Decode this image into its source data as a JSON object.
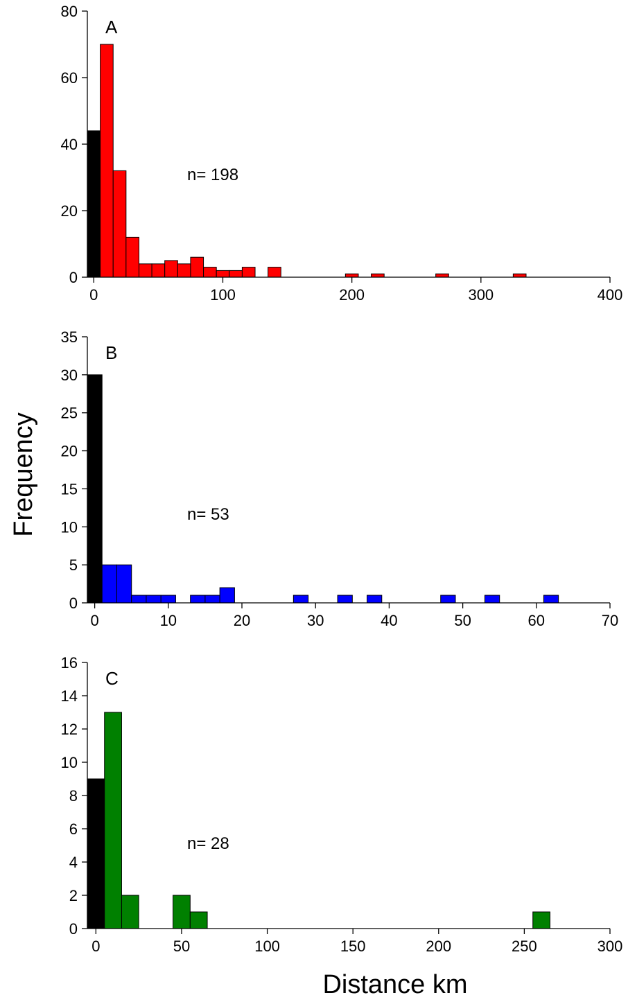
{
  "figure": {
    "ylabel": "Frequency",
    "xlabel": "Distance km"
  },
  "chart_data": [
    {
      "type": "bar",
      "panel_label": "A",
      "annotation": "n= 198",
      "xlim": [
        -5,
        400
      ],
      "ylim": [
        0,
        80
      ],
      "xticks": [
        0,
        100,
        200,
        300,
        400
      ],
      "yticks": [
        0,
        20,
        40,
        60,
        80
      ],
      "grid": false,
      "bins": [
        {
          "x0": -5,
          "x1": 5,
          "value": 44,
          "color": "#000000"
        },
        {
          "x0": 5,
          "x1": 15,
          "value": 70,
          "color": "#ff0000"
        },
        {
          "x0": 15,
          "x1": 25,
          "value": 32,
          "color": "#ff0000"
        },
        {
          "x0": 25,
          "x1": 35,
          "value": 12,
          "color": "#ff0000"
        },
        {
          "x0": 35,
          "x1": 45,
          "value": 4,
          "color": "#ff0000"
        },
        {
          "x0": 45,
          "x1": 55,
          "value": 4,
          "color": "#ff0000"
        },
        {
          "x0": 55,
          "x1": 65,
          "value": 5,
          "color": "#ff0000"
        },
        {
          "x0": 65,
          "x1": 75,
          "value": 4,
          "color": "#ff0000"
        },
        {
          "x0": 75,
          "x1": 85,
          "value": 6,
          "color": "#ff0000"
        },
        {
          "x0": 85,
          "x1": 95,
          "value": 3,
          "color": "#ff0000"
        },
        {
          "x0": 95,
          "x1": 105,
          "value": 2,
          "color": "#ff0000"
        },
        {
          "x0": 105,
          "x1": 115,
          "value": 2,
          "color": "#ff0000"
        },
        {
          "x0": 115,
          "x1": 125,
          "value": 3,
          "color": "#ff0000"
        },
        {
          "x0": 135,
          "x1": 145,
          "value": 3,
          "color": "#ff0000"
        },
        {
          "x0": 195,
          "x1": 205,
          "value": 1,
          "color": "#ff0000"
        },
        {
          "x0": 215,
          "x1": 225,
          "value": 1,
          "color": "#ff0000"
        },
        {
          "x0": 265,
          "x1": 275,
          "value": 1,
          "color": "#ff0000"
        },
        {
          "x0": 325,
          "x1": 335,
          "value": 1,
          "color": "#ff0000"
        }
      ]
    },
    {
      "type": "bar",
      "panel_label": "B",
      "annotation": "n= 53",
      "xlim": [
        -1,
        70
      ],
      "ylim": [
        0,
        35
      ],
      "xticks": [
        0,
        10,
        20,
        30,
        40,
        50,
        60,
        70
      ],
      "yticks": [
        0,
        5,
        10,
        15,
        20,
        25,
        30,
        35
      ],
      "grid": false,
      "bins": [
        {
          "x0": -1,
          "x1": 1,
          "value": 30,
          "color": "#000000"
        },
        {
          "x0": 1,
          "x1": 3,
          "value": 5,
          "color": "#0000ff"
        },
        {
          "x0": 3,
          "x1": 5,
          "value": 5,
          "color": "#0000ff"
        },
        {
          "x0": 5,
          "x1": 7,
          "value": 1,
          "color": "#0000ff"
        },
        {
          "x0": 7,
          "x1": 9,
          "value": 1,
          "color": "#0000ff"
        },
        {
          "x0": 9,
          "x1": 11,
          "value": 1,
          "color": "#0000ff"
        },
        {
          "x0": 13,
          "x1": 15,
          "value": 1,
          "color": "#0000ff"
        },
        {
          "x0": 15,
          "x1": 17,
          "value": 1,
          "color": "#0000ff"
        },
        {
          "x0": 17,
          "x1": 19,
          "value": 2,
          "color": "#0000ff"
        },
        {
          "x0": 27,
          "x1": 29,
          "value": 1,
          "color": "#0000ff"
        },
        {
          "x0": 33,
          "x1": 35,
          "value": 1,
          "color": "#0000ff"
        },
        {
          "x0": 37,
          "x1": 39,
          "value": 1,
          "color": "#0000ff"
        },
        {
          "x0": 47,
          "x1": 49,
          "value": 1,
          "color": "#0000ff"
        },
        {
          "x0": 53,
          "x1": 55,
          "value": 1,
          "color": "#0000ff"
        },
        {
          "x0": 61,
          "x1": 63,
          "value": 1,
          "color": "#0000ff"
        }
      ]
    },
    {
      "type": "bar",
      "panel_label": "C",
      "annotation": "n= 28",
      "xlim": [
        -5,
        300
      ],
      "ylim": [
        0,
        16
      ],
      "xticks": [
        0,
        50,
        100,
        150,
        200,
        250,
        300
      ],
      "yticks": [
        0,
        2,
        4,
        6,
        8,
        10,
        12,
        14,
        16
      ],
      "grid": false,
      "bins": [
        {
          "x0": -5,
          "x1": 5,
          "value": 9,
          "color": "#000000"
        },
        {
          "x0": 5,
          "x1": 15,
          "value": 13,
          "color": "#008000"
        },
        {
          "x0": 15,
          "x1": 25,
          "value": 2,
          "color": "#008000"
        },
        {
          "x0": 45,
          "x1": 55,
          "value": 2,
          "color": "#008000"
        },
        {
          "x0": 55,
          "x1": 65,
          "value": 1,
          "color": "#008000"
        },
        {
          "x0": 255,
          "x1": 265,
          "value": 1,
          "color": "#008000"
        }
      ]
    }
  ]
}
